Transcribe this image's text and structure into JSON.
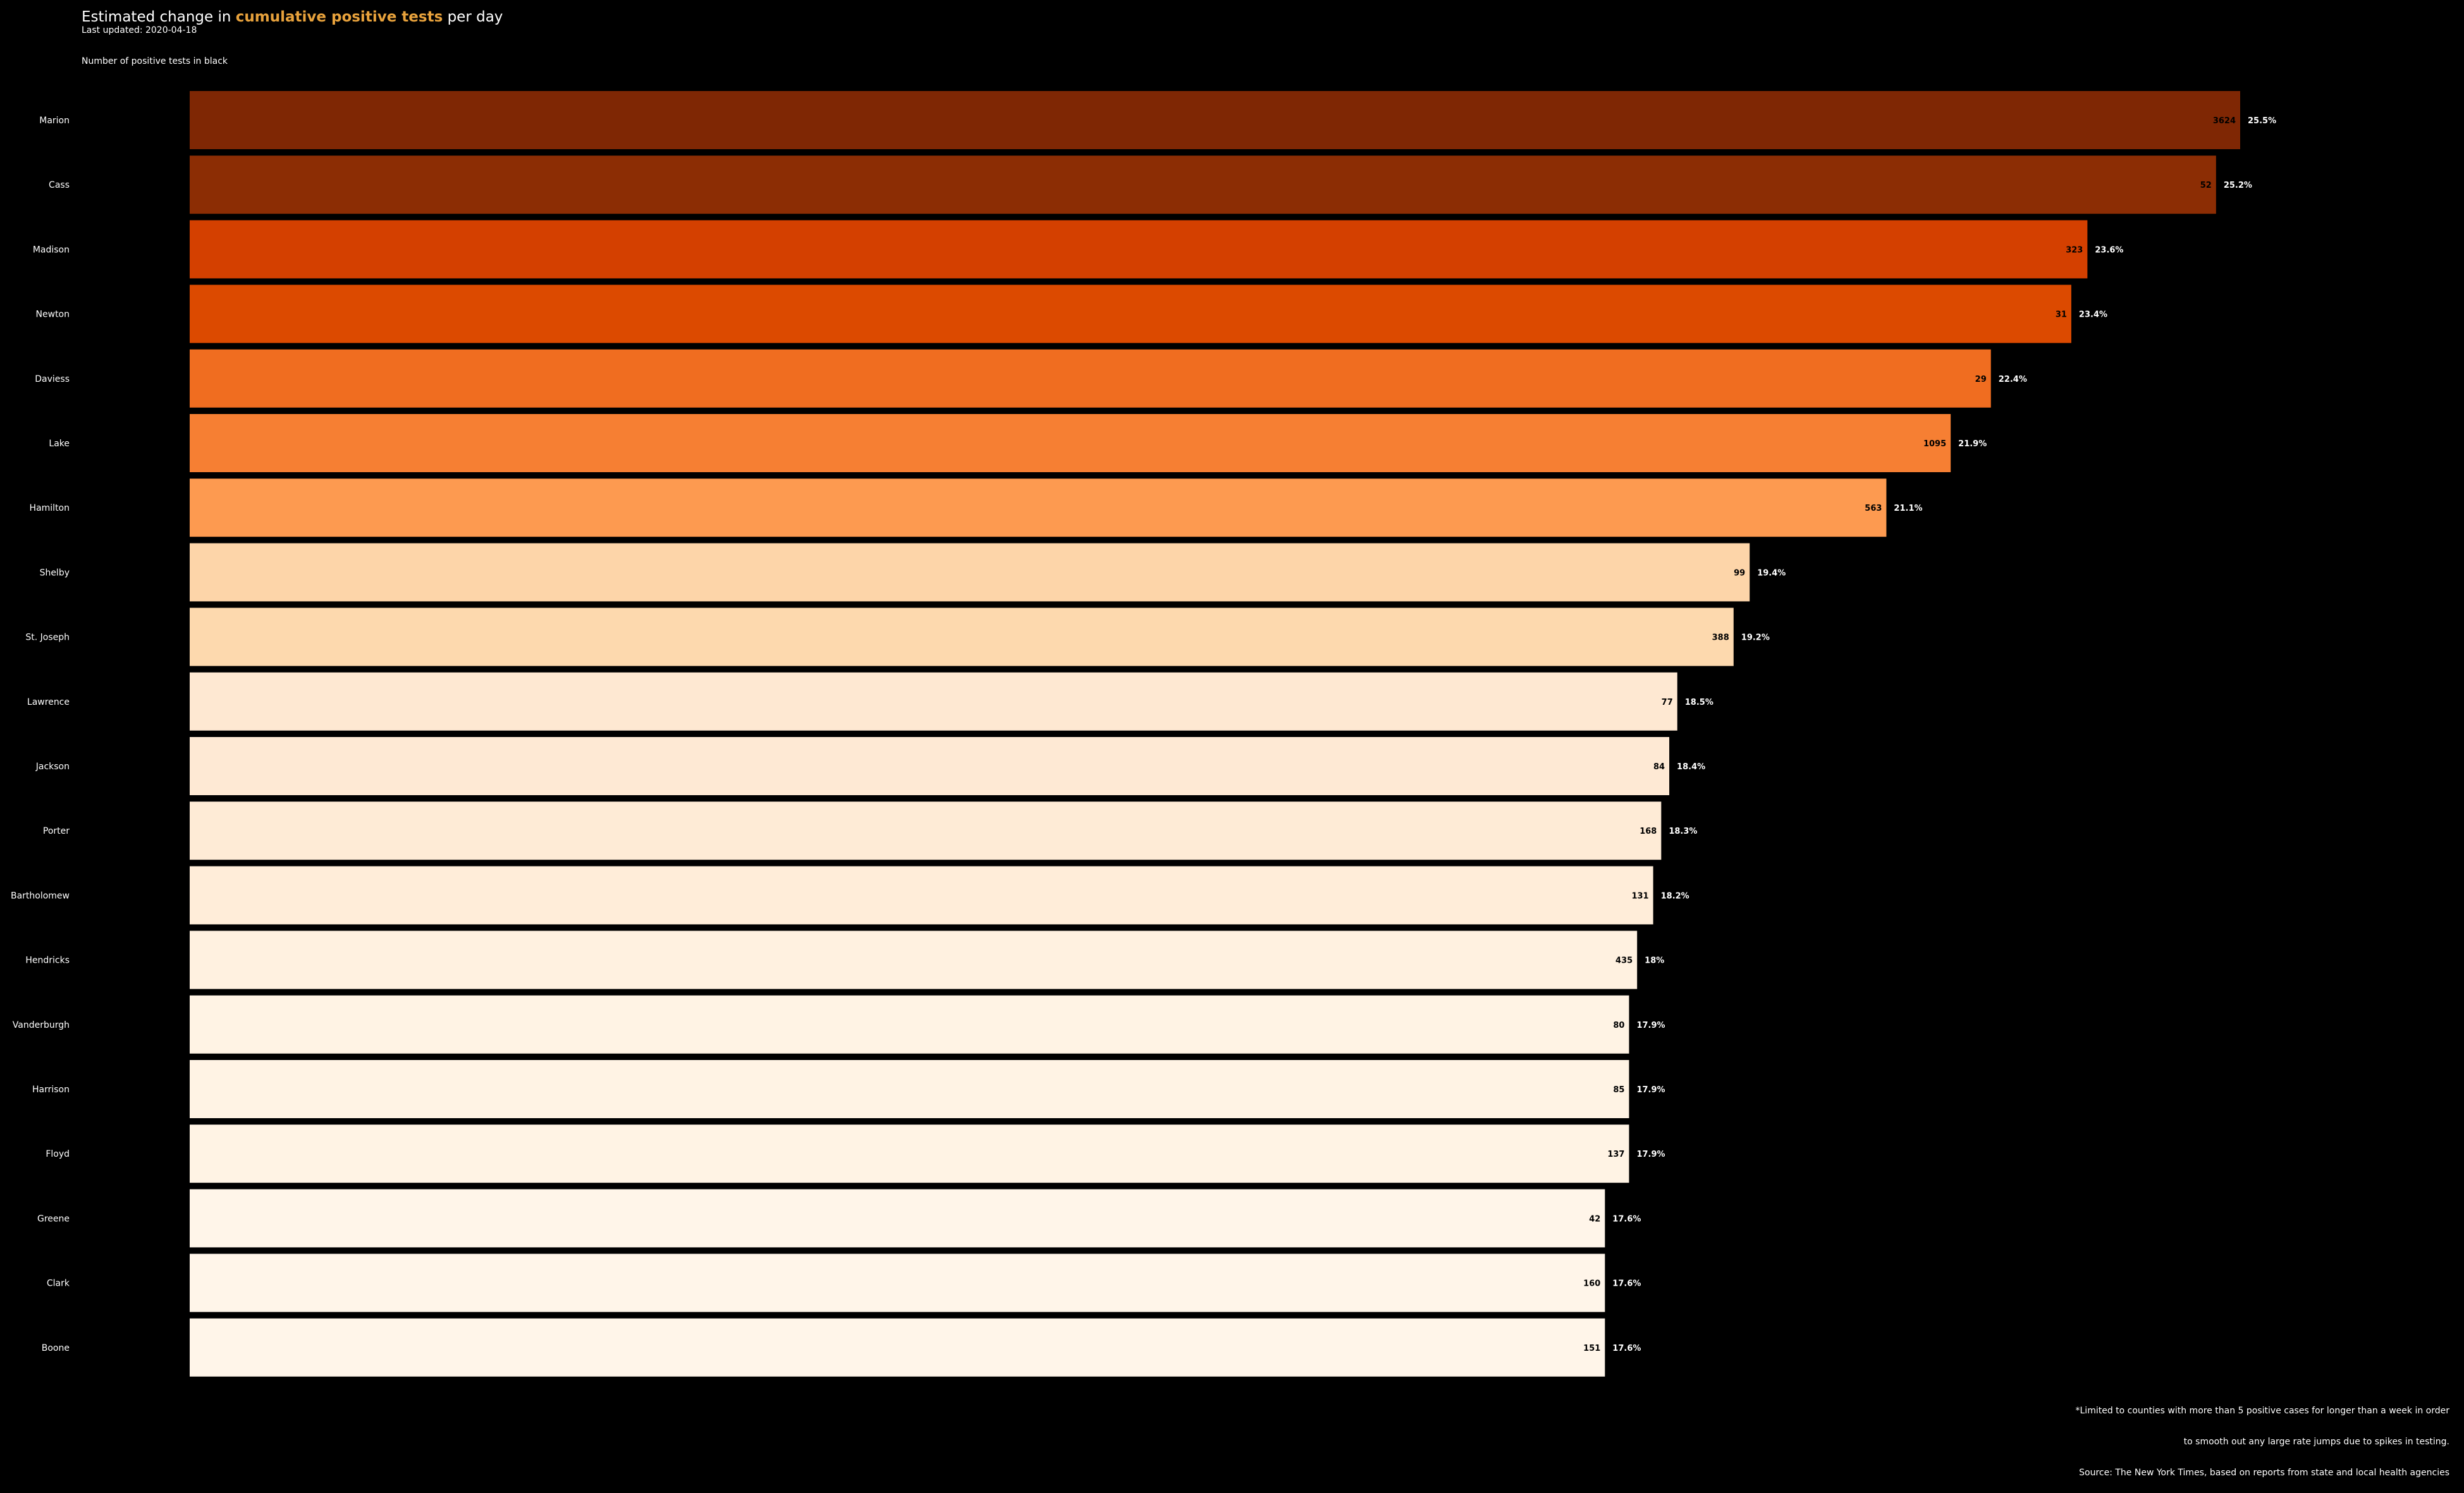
{
  "header": {
    "title_prefix": "Estimated change in ",
    "title_accent": "cumulative positive tests",
    "title_suffix": " per day",
    "last_updated": "Last updated: 2020-04-18",
    "subtitle": "Number of positive tests in black"
  },
  "footer": {
    "note_line1": "*Limited to counties with more than 5 positive cases for longer than a week in order",
    "note_line2": "to smooth out any large rate jumps due to spikes in testing.",
    "source": "Source: The New York Times, based on reports from state and local health agencies"
  },
  "chart_data": {
    "type": "bar",
    "orientation": "horizontal",
    "categories": [
      "Marion",
      "Cass",
      "Madison",
      "Newton",
      "Daviess",
      "Lake",
      "Hamilton",
      "Shelby",
      "St. Joseph",
      "Lawrence",
      "Jackson",
      "Porter",
      "Bartholomew",
      "Hendricks",
      "Vanderburgh",
      "Harrison",
      "Floyd",
      "Greene",
      "Clark",
      "Boone"
    ],
    "values": [
      25.5,
      25.2,
      23.6,
      23.4,
      22.4,
      21.9,
      21.1,
      19.4,
      19.2,
      18.5,
      18.4,
      18.3,
      18.2,
      18.0,
      17.9,
      17.9,
      17.9,
      17.6,
      17.6,
      17.6
    ],
    "value_labels": [
      "25.5%",
      "25.2%",
      "23.6%",
      "23.4%",
      "22.4%",
      "21.9%",
      "21.1%",
      "19.4%",
      "19.2%",
      "18.5%",
      "18.4%",
      "18.3%",
      "18.2%",
      "18%",
      "17.9%",
      "17.9%",
      "17.9%",
      "17.6%",
      "17.6%",
      "17.6%"
    ],
    "positive_tests": [
      "3624",
      "52",
      "323",
      "31",
      "29",
      "1095",
      "563",
      "99",
      "388",
      "77",
      "84",
      "168",
      "131",
      "435",
      "80",
      "85",
      "137",
      "42",
      "160",
      "151"
    ],
    "colors": [
      "#7f2704",
      "#8c2d04",
      "#d44000",
      "#dc4a00",
      "#f06d20",
      "#f67f33",
      "#fd9a50",
      "#fdd5a9",
      "#fdd9ae",
      "#fee8d2",
      "#fee9d4",
      "#feebd6",
      "#ffedd9",
      "#fff1e0",
      "#fff3e4",
      "#fff3e4",
      "#fff3e4",
      "#fff5e9",
      "#fff5e9",
      "#fff5e9"
    ],
    "grid": false,
    "legend": "none"
  }
}
